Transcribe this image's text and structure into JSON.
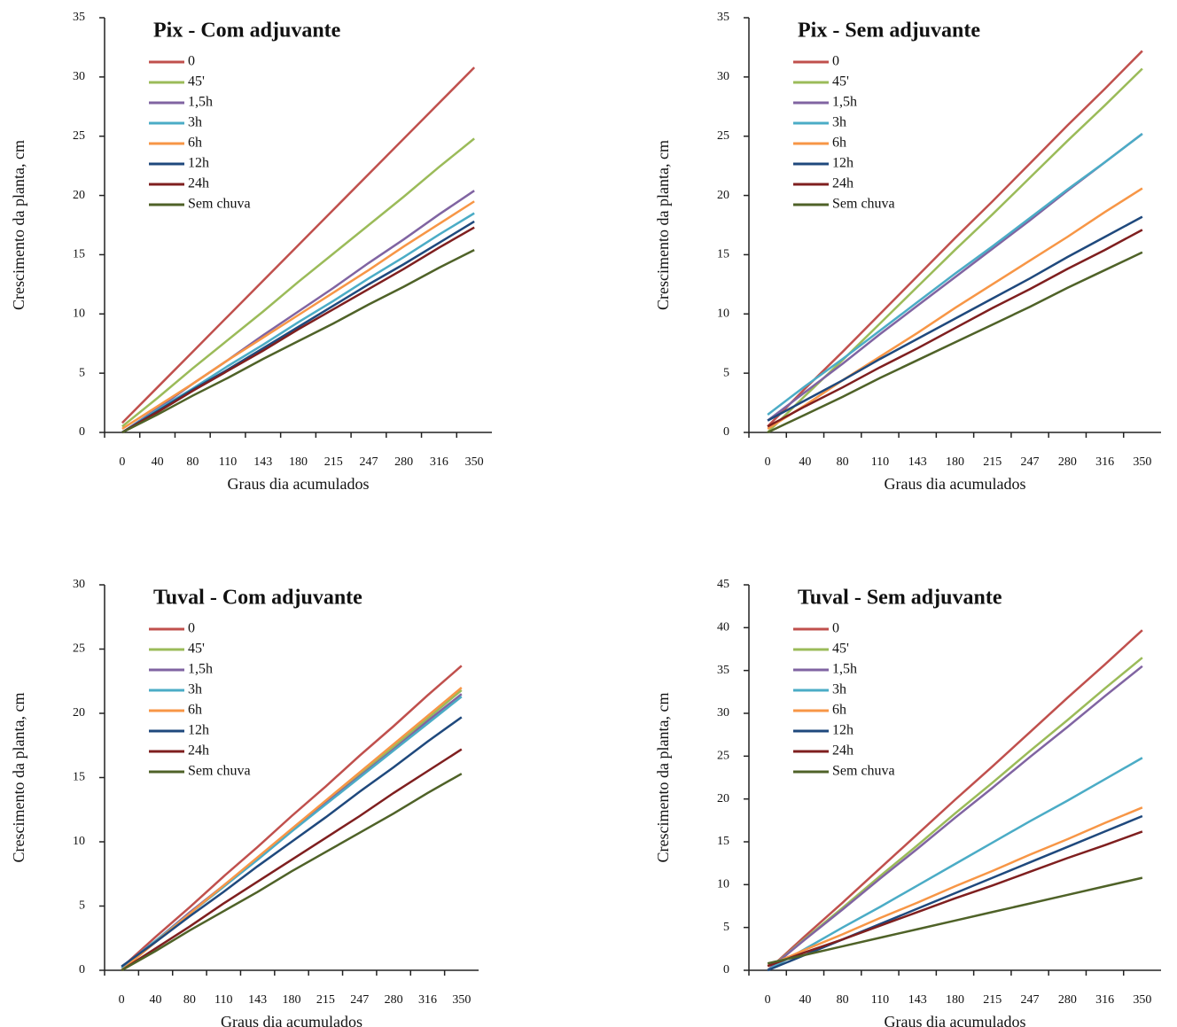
{
  "chart_data": [
    {
      "type": "line",
      "title": "Pix - Com adjuvante",
      "xlabel": "Graus dia acumulados",
      "ylabel": "Crescimento da planta, cm",
      "categories": [
        "0",
        "40",
        "80",
        "110",
        "143",
        "180",
        "215",
        "247",
        "280",
        "316",
        "350"
      ],
      "ylim": [
        0,
        35
      ],
      "yticks": [
        0,
        5,
        10,
        15,
        20,
        25,
        30,
        35
      ],
      "legend": "upper left",
      "series": [
        {
          "name": "0",
          "color": "#c0504d",
          "values": [
            0.8,
            3.8,
            6.8,
            9.8,
            12.8,
            15.8,
            18.8,
            21.8,
            24.8,
            27.8,
            30.8
          ]
        },
        {
          "name": "45'",
          "color": "#9bbb59",
          "values": [
            0.5,
            2.9,
            5.4,
            7.8,
            10.2,
            12.7,
            15.1,
            17.5,
            19.9,
            22.4,
            24.8
          ]
        },
        {
          "name": "1,5h",
          "color": "#8064a2",
          "values": [
            0,
            2.0,
            4.1,
            6.1,
            8.2,
            10.2,
            12.2,
            14.3,
            16.3,
            18.4,
            20.4
          ]
        },
        {
          "name": "3h",
          "color": "#4bacc6",
          "values": [
            0,
            1.9,
            3.7,
            5.6,
            7.4,
            9.3,
            11.1,
            13.0,
            14.8,
            16.7,
            18.5
          ]
        },
        {
          "name": "6h",
          "color": "#f79646",
          "values": [
            0.3,
            2.2,
            4.1,
            6.1,
            8.0,
            9.9,
            11.8,
            13.7,
            15.7,
            17.6,
            19.5
          ]
        },
        {
          "name": "12h",
          "color": "#1f497d",
          "values": [
            0,
            1.8,
            3.6,
            5.3,
            7.1,
            8.9,
            10.7,
            12.5,
            14.2,
            16.0,
            17.8
          ]
        },
        {
          "name": "24h",
          "color": "#7f1f1f",
          "values": [
            0,
            1.7,
            3.5,
            5.2,
            6.9,
            8.7,
            10.4,
            12.1,
            13.8,
            15.6,
            17.3
          ]
        },
        {
          "name": "Sem chuva",
          "color": "#4f6228",
          "values": [
            0,
            1.5,
            3.1,
            4.6,
            6.2,
            7.7,
            9.2,
            10.8,
            12.3,
            13.9,
            15.4
          ]
        }
      ]
    },
    {
      "type": "line",
      "title": "Pix - Sem adjuvante",
      "xlabel": "Graus dia acumulados",
      "ylabel": "Crescimento da planta, cm",
      "categories": [
        "0",
        "40",
        "80",
        "110",
        "143",
        "180",
        "215",
        "247",
        "280",
        "316",
        "350"
      ],
      "ylim": [
        0,
        35
      ],
      "yticks": [
        0,
        5,
        10,
        15,
        20,
        25,
        30,
        35
      ],
      "legend": "upper left",
      "series": [
        {
          "name": "0",
          "color": "#c0504d",
          "values": [
            0.5,
            3.7,
            6.8,
            10.0,
            13.2,
            16.4,
            19.5,
            22.7,
            25.9,
            29.0,
            32.2
          ]
        },
        {
          "name": "45'",
          "color": "#9bbb59",
          "values": [
            0,
            3.1,
            6.1,
            9.2,
            12.3,
            15.4,
            18.4,
            21.5,
            24.6,
            27.6,
            30.7
          ]
        },
        {
          "name": "1,5h",
          "color": "#8064a2",
          "values": [
            1.0,
            3.4,
            5.8,
            8.3,
            10.7,
            13.1,
            15.5,
            17.9,
            20.4,
            22.8,
            25.2
          ]
        },
        {
          "name": "3h",
          "color": "#4bacc6",
          "values": [
            1.5,
            3.9,
            6.2,
            8.6,
            11.0,
            13.4,
            15.7,
            18.1,
            20.5,
            22.8,
            25.2
          ]
        },
        {
          "name": "6h",
          "color": "#f79646",
          "values": [
            0.3,
            2.3,
            4.4,
            6.4,
            8.4,
            10.5,
            12.5,
            14.5,
            16.5,
            18.6,
            20.6
          ]
        },
        {
          "name": "12h",
          "color": "#1f497d",
          "values": [
            1.0,
            2.7,
            4.4,
            6.2,
            7.9,
            9.6,
            11.3,
            13.0,
            14.8,
            16.5,
            18.2
          ]
        },
        {
          "name": "24h",
          "color": "#7f1f1f",
          "values": [
            0.5,
            2.2,
            3.8,
            5.5,
            7.1,
            8.8,
            10.5,
            12.1,
            13.8,
            15.4,
            17.1
          ]
        },
        {
          "name": "Sem chuva",
          "color": "#4f6228",
          "values": [
            0,
            1.5,
            3.0,
            4.6,
            6.1,
            7.6,
            9.1,
            10.6,
            12.2,
            13.7,
            15.2
          ]
        }
      ]
    },
    {
      "type": "line",
      "title": "Tuval - Com adjuvante",
      "xlabel": "Graus dia acumulados",
      "ylabel": "Crescimento da planta, cm",
      "categories": [
        "0",
        "40",
        "80",
        "110",
        "143",
        "180",
        "215",
        "247",
        "280",
        "316",
        "350"
      ],
      "ylim": [
        0,
        30
      ],
      "yticks": [
        0,
        5,
        10,
        15,
        20,
        25,
        30
      ],
      "legend": "upper left",
      "series": [
        {
          "name": "0",
          "color": "#c0504d",
          "values": [
            0.2,
            2.6,
            4.9,
            7.3,
            9.6,
            12.0,
            14.3,
            16.7,
            19.0,
            21.4,
            23.7
          ]
        },
        {
          "name": "45'",
          "color": "#9bbb59",
          "values": [
            0,
            2.2,
            4.4,
            6.5,
            8.7,
            10.9,
            13.1,
            15.3,
            17.4,
            19.6,
            21.8
          ]
        },
        {
          "name": "1,5h",
          "color": "#8064a2",
          "values": [
            0.2,
            2.3,
            4.5,
            6.6,
            8.7,
            10.9,
            13.0,
            15.1,
            17.2,
            19.4,
            21.5
          ]
        },
        {
          "name": "3h",
          "color": "#4bacc6",
          "values": [
            0.2,
            2.3,
            4.4,
            6.5,
            8.6,
            10.8,
            12.9,
            15.0,
            17.1,
            19.2,
            21.3
          ]
        },
        {
          "name": "6h",
          "color": "#f79646",
          "values": [
            0,
            2.2,
            4.4,
            6.6,
            8.8,
            11.0,
            13.2,
            15.4,
            17.6,
            19.8,
            22.0
          ]
        },
        {
          "name": "12h",
          "color": "#1f497d",
          "values": [
            0.3,
            2.2,
            4.2,
            6.1,
            8.1,
            10.0,
            11.9,
            13.9,
            15.8,
            17.8,
            19.7
          ]
        },
        {
          "name": "24h",
          "color": "#7f1f1f",
          "values": [
            0,
            1.7,
            3.4,
            5.2,
            6.9,
            8.6,
            10.3,
            12.0,
            13.8,
            15.5,
            17.2
          ]
        },
        {
          "name": "Sem chuva",
          "color": "#4f6228",
          "values": [
            0,
            1.5,
            3.1,
            4.6,
            6.1,
            7.7,
            9.2,
            10.7,
            12.2,
            13.8,
            15.3
          ]
        }
      ]
    },
    {
      "type": "line",
      "title": "Tuval - Sem adjuvante",
      "xlabel": "Graus dia acumulados",
      "ylabel": "Crescimento da planta, cm",
      "categories": [
        "0",
        "40",
        "80",
        "110",
        "143",
        "180",
        "215",
        "247",
        "280",
        "316",
        "350"
      ],
      "ylim": [
        0,
        45
      ],
      "yticks": [
        0,
        5,
        10,
        15,
        20,
        25,
        30,
        35,
        40,
        45
      ],
      "legend": "upper left",
      "series": [
        {
          "name": "0",
          "color": "#c0504d",
          "values": [
            0,
            4.0,
            7.9,
            11.9,
            15.9,
            19.9,
            23.8,
            27.8,
            31.8,
            35.7,
            39.7
          ]
        },
        {
          "name": "45'",
          "color": "#9bbb59",
          "values": [
            0,
            3.7,
            7.3,
            11.0,
            14.6,
            18.3,
            21.9,
            25.6,
            29.2,
            32.9,
            36.5
          ]
        },
        {
          "name": "1,5h",
          "color": "#8064a2",
          "values": [
            0,
            3.6,
            7.1,
            10.7,
            14.2,
            17.8,
            21.3,
            24.9,
            28.4,
            32.0,
            35.5
          ]
        },
        {
          "name": "3h",
          "color": "#4bacc6",
          "values": [
            0,
            2.5,
            5.0,
            7.4,
            9.9,
            12.4,
            14.9,
            17.4,
            19.8,
            22.3,
            24.8
          ]
        },
        {
          "name": "6h",
          "color": "#f79646",
          "values": [
            0.5,
            2.4,
            4.2,
            6.1,
            7.9,
            9.8,
            11.6,
            13.5,
            15.3,
            17.2,
            19.0
          ]
        },
        {
          "name": "12h",
          "color": "#1f497d",
          "values": [
            0,
            1.8,
            3.6,
            5.4,
            7.2,
            9.0,
            10.8,
            12.6,
            14.4,
            16.2,
            18.0
          ]
        },
        {
          "name": "24h",
          "color": "#7f1f1f",
          "values": [
            0.5,
            2.1,
            3.6,
            5.2,
            6.8,
            8.4,
            9.9,
            11.5,
            13.1,
            14.6,
            16.2
          ]
        },
        {
          "name": "Sem chuva",
          "color": "#4f6228",
          "values": [
            0.8,
            1.8,
            2.8,
            3.8,
            4.8,
            5.8,
            6.8,
            7.8,
            8.8,
            9.8,
            10.8
          ]
        }
      ]
    }
  ]
}
